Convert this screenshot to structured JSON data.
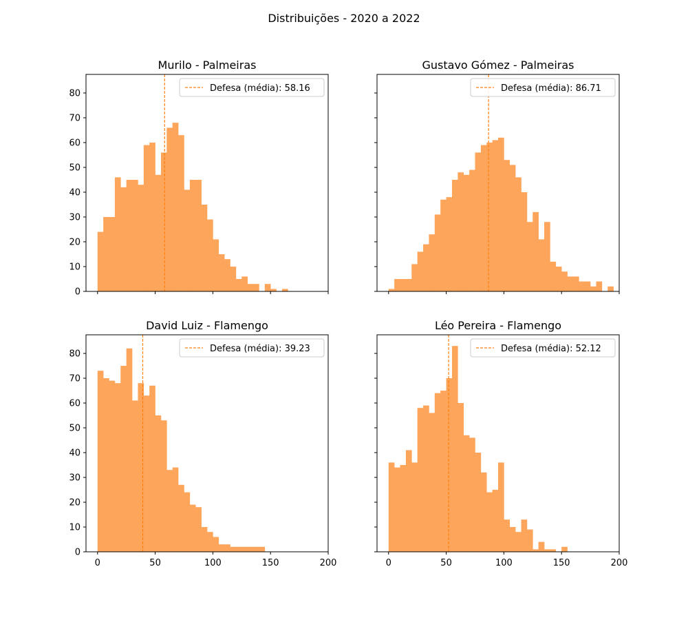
{
  "figure_title": "Distribuições - 2020 a 2022",
  "colors": {
    "bar": "#fda55a",
    "mean_line": "#ff7f0e",
    "axis": "#000000",
    "legend_border": "#cccccc"
  },
  "chart_data": [
    {
      "type": "bar",
      "title": "Murilo - Palmeiras",
      "legend_label": "Defesa (média): 58.16",
      "legend_position": "upper right",
      "mean": 58.16,
      "xlim": [
        -10,
        200
      ],
      "ylim": [
        0,
        87.5
      ],
      "xticks": [
        0,
        50,
        100,
        150,
        200
      ],
      "yticks": [
        0,
        10,
        20,
        30,
        40,
        50,
        60,
        70,
        80
      ],
      "show_xticklabels": false,
      "show_yticklabels": true,
      "bin_width": 5,
      "bin_edges": [
        0,
        190
      ],
      "values": [
        24,
        30,
        30,
        46,
        42,
        45,
        45,
        43,
        59,
        60,
        47,
        56,
        66,
        68,
        63,
        41,
        45,
        45,
        35,
        29,
        21,
        15,
        13,
        10,
        5,
        6,
        3,
        3,
        0,
        3,
        1,
        0,
        1,
        0,
        0,
        0,
        0,
        0
      ]
    },
    {
      "type": "bar",
      "title": "Gustavo Gómez - Palmeiras",
      "legend_label": "Defesa (média): 86.71",
      "legend_position": "upper right",
      "mean": 86.71,
      "xlim": [
        -10,
        200
      ],
      "ylim": [
        0,
        87.5
      ],
      "xticks": [
        0,
        50,
        100,
        150,
        200
      ],
      "yticks": [
        0,
        10,
        20,
        30,
        40,
        50,
        60,
        70,
        80
      ],
      "show_xticklabels": false,
      "show_yticklabels": false,
      "bin_width": 5,
      "bin_edges": [
        0,
        195
      ],
      "values": [
        1,
        5,
        5,
        5,
        11,
        16,
        19,
        23,
        31,
        37,
        38,
        45,
        48,
        47,
        49,
        56,
        59,
        60,
        61,
        62,
        53,
        51,
        46,
        40,
        28,
        32,
        21,
        28,
        12,
        10,
        8,
        6,
        6,
        4,
        4,
        2,
        4,
        0,
        2
      ]
    },
    {
      "type": "bar",
      "title": "David Luiz - Flamengo",
      "legend_label": "Defesa (média): 39.23",
      "legend_position": "upper right",
      "mean": 39.23,
      "xlim": [
        -10,
        200
      ],
      "ylim": [
        0,
        87.5
      ],
      "xticks": [
        0,
        50,
        100,
        150,
        200
      ],
      "yticks": [
        0,
        10,
        20,
        30,
        40,
        50,
        60,
        70,
        80
      ],
      "show_xticklabels": true,
      "show_yticklabels": true,
      "bin_width": 5,
      "bin_edges": [
        0,
        145
      ],
      "values": [
        73,
        70,
        69,
        68,
        75,
        82,
        61,
        68,
        63,
        67,
        55,
        53,
        33,
        34,
        27,
        24,
        19,
        18,
        10,
        8,
        6,
        3,
        3,
        2,
        2,
        2,
        2,
        2,
        2
      ]
    },
    {
      "type": "bar",
      "title": "Léo Pereira - Flamengo",
      "legend_label": "Defesa (média): 52.12",
      "legend_position": "upper right",
      "mean": 52.12,
      "xlim": [
        -10,
        200
      ],
      "ylim": [
        0,
        87.5
      ],
      "xticks": [
        0,
        50,
        100,
        150,
        200
      ],
      "yticks": [
        0,
        10,
        20,
        30,
        40,
        50,
        60,
        70,
        80
      ],
      "show_xticklabels": true,
      "show_yticklabels": false,
      "bin_width": 5,
      "bin_edges": [
        0,
        155
      ],
      "values": [
        36,
        34,
        35,
        41,
        36,
        58,
        59,
        56,
        64,
        65,
        70,
        83,
        60,
        47,
        46,
        40,
        32,
        24,
        25,
        36,
        13,
        10,
        8,
        13,
        9,
        1,
        4,
        1,
        1,
        0,
        2
      ]
    }
  ]
}
